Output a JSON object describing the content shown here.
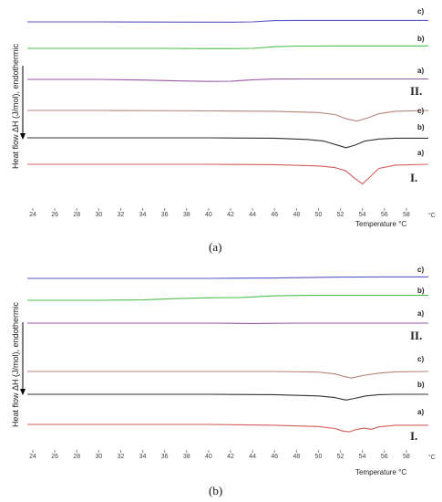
{
  "chart_data": [
    {
      "type": "line",
      "caption": "(a)",
      "ylabel": "Heat flow ΔH (J/mol), endothermic",
      "xlabel": "Temperature °C",
      "x_unit_label": "°C",
      "xlim": [
        23.5,
        60
      ],
      "x_ticks": [
        "24",
        "26",
        "28",
        "30",
        "32",
        "34",
        "36",
        "38",
        "40",
        "42",
        "44",
        "46",
        "48",
        "50",
        "52",
        "54",
        "56",
        "58"
      ],
      "groups": [
        {
          "name": "II."
        },
        {
          "name": "I."
        }
      ],
      "series": [
        {
          "name": "c)",
          "group": "II.",
          "color": "#5b57c8",
          "x": [
            23.5,
            30,
            36,
            42,
            44,
            46,
            48,
            52,
            56,
            60
          ],
          "y": [
            0,
            0,
            0.2,
            0.3,
            0,
            -1.5,
            -1.8,
            -1.8,
            -1.8,
            -1.8
          ]
        },
        {
          "name": "b)",
          "group": "II.",
          "color": "#4fbf50",
          "x": [
            23.5,
            30,
            36,
            40,
            42,
            44,
            46,
            48,
            52,
            56,
            60
          ],
          "y": [
            0,
            0,
            0,
            0.3,
            0.3,
            0,
            -2,
            -2.8,
            -3,
            -3,
            -3
          ]
        },
        {
          "name": "a)",
          "group": "II.",
          "color": "#9a5aa6",
          "x": [
            23.5,
            30,
            34,
            37,
            40,
            42,
            44,
            46,
            50,
            54,
            60
          ],
          "y": [
            0,
            0,
            0.8,
            1.8,
            2.4,
            2.2,
            0.4,
            -0.4,
            -0.5,
            -0.5,
            -0.5
          ]
        },
        {
          "name": "c)",
          "group": "I.",
          "color": "#b8847a",
          "x": [
            23.5,
            30,
            40,
            46,
            50,
            51.5,
            52.5,
            53.5,
            54.5,
            55.5,
            57,
            60
          ],
          "y": [
            0,
            0,
            0.5,
            1,
            2.5,
            5,
            10,
            13,
            9,
            4,
            1,
            0
          ]
        },
        {
          "name": "b)",
          "group": "I.",
          "color": "#333333",
          "x": [
            23.5,
            30,
            40,
            46,
            49,
            50.5,
            51.5,
            52.5,
            53.3,
            54.2,
            55.5,
            57,
            60
          ],
          "y": [
            0,
            0,
            0,
            0.5,
            2,
            4,
            8,
            12,
            9,
            4,
            1.5,
            0.5,
            0.5
          ]
        },
        {
          "name": "a)",
          "group": "I.",
          "color": "#d45c5c",
          "x": [
            23.5,
            30,
            40,
            46,
            50,
            51.5,
            52.5,
            53.2,
            54,
            54.8,
            55.5,
            57,
            60
          ],
          "y": [
            0,
            0,
            0,
            0.5,
            2,
            4,
            8,
            16,
            24,
            14,
            5,
            1,
            0
          ]
        }
      ]
    },
    {
      "type": "line",
      "caption": "(b)",
      "ylabel": "Heat flow ΔH (J/mol), endothermic",
      "xlabel": "Temperature °C",
      "x_unit_label": "°C",
      "xlim": [
        23.5,
        60
      ],
      "x_ticks": [
        "24",
        "26",
        "28",
        "30",
        "32",
        "34",
        "36",
        "38",
        "40",
        "42",
        "44",
        "46",
        "48",
        "50",
        "52",
        "54",
        "56",
        "58"
      ],
      "groups": [
        {
          "name": "II."
        },
        {
          "name": "I."
        }
      ],
      "series": [
        {
          "name": "c)",
          "group": "II.",
          "color": "#5b57c8",
          "x": [
            23.5,
            30,
            40,
            46,
            52,
            56,
            60
          ],
          "y": [
            0,
            0,
            0,
            -0.5,
            -1.5,
            -1.8,
            -1.8
          ]
        },
        {
          "name": "b)",
          "group": "II.",
          "color": "#4fbf50",
          "x": [
            23.5,
            30,
            34,
            37,
            40,
            43,
            46,
            49,
            52,
            56,
            60
          ],
          "y": [
            0,
            0,
            -0.5,
            -2,
            -3,
            -3.5,
            -5.5,
            -6,
            -6,
            -6,
            -6
          ]
        },
        {
          "name": "a)",
          "group": "II.",
          "color": "#9a5aa6",
          "x": [
            23.5,
            30,
            40,
            44,
            48,
            52,
            56,
            60
          ],
          "y": [
            0,
            0,
            0,
            0.5,
            0,
            0,
            0,
            0
          ]
        },
        {
          "name": "c)",
          "group": "I.",
          "color": "#b8847a",
          "x": [
            23.5,
            30,
            40,
            46,
            50,
            51.5,
            52.3,
            53,
            54,
            55.5,
            57,
            60
          ],
          "y": [
            0,
            0,
            0,
            0,
            0.8,
            3,
            6,
            8,
            5,
            2,
            0.5,
            0
          ]
        },
        {
          "name": "b)",
          "group": "I.",
          "color": "#333333",
          "x": [
            23.5,
            30,
            40,
            46,
            50,
            51.5,
            52.5,
            53.3,
            54.3,
            55.5,
            57,
            60
          ],
          "y": [
            0,
            0,
            0,
            0.5,
            2,
            4,
            7,
            5,
            2,
            0.5,
            0,
            0
          ]
        },
        {
          "name": "a)",
          "group": "I.",
          "color": "#d45c5c",
          "x": [
            23.5,
            30,
            40,
            46,
            50,
            51.5,
            52.2,
            52.8,
            53.5,
            54.2,
            54.8,
            55.5,
            57,
            60
          ],
          "y": [
            0,
            0,
            0,
            1,
            2.5,
            5,
            8,
            9,
            6,
            4.5,
            6,
            3,
            1,
            1
          ]
        }
      ]
    }
  ]
}
